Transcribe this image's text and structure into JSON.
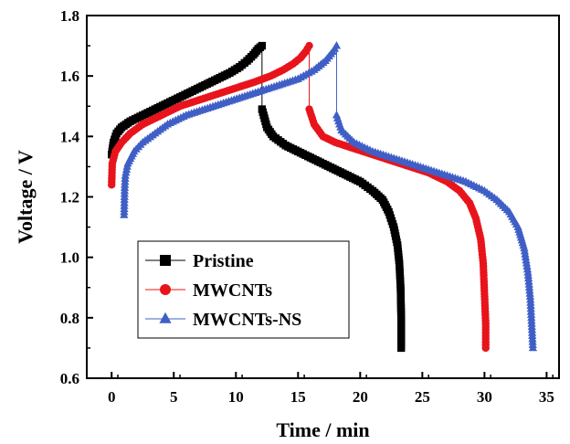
{
  "chart_data": {
    "type": "line",
    "xlabel": "Time / min",
    "ylabel": "Voltage / V",
    "xlim": [
      -2,
      36
    ],
    "ylim": [
      0.6,
      1.8
    ],
    "xticks": [
      "0",
      "5",
      "10",
      "15",
      "20",
      "25",
      "30",
      "35"
    ],
    "yticks": [
      "0.6",
      "0.8",
      "1.0",
      "1.2",
      "1.4",
      "1.6",
      "1.8"
    ],
    "legend_position": "bottom-left",
    "series": [
      {
        "name": "Pristine",
        "color": "#000000",
        "marker": "square",
        "charge": [
          [
            0.0,
            1.34
          ],
          [
            0.15,
            1.38
          ],
          [
            0.4,
            1.41
          ],
          [
            0.8,
            1.43
          ],
          [
            1.5,
            1.45
          ],
          [
            2.5,
            1.47
          ],
          [
            3.5,
            1.49
          ],
          [
            4.5,
            1.51
          ],
          [
            5.5,
            1.53
          ],
          [
            6.5,
            1.55
          ],
          [
            7.5,
            1.57
          ],
          [
            8.5,
            1.59
          ],
          [
            9.5,
            1.61
          ],
          [
            10.3,
            1.63
          ],
          [
            10.9,
            1.65
          ],
          [
            11.4,
            1.67
          ],
          [
            11.8,
            1.69
          ],
          [
            12.1,
            1.7
          ]
        ],
        "discharge": [
          [
            12.1,
            1.49
          ],
          [
            12.5,
            1.43
          ],
          [
            13.0,
            1.4
          ],
          [
            14.0,
            1.37
          ],
          [
            15.0,
            1.35
          ],
          [
            16.0,
            1.33
          ],
          [
            17.0,
            1.31
          ],
          [
            18.0,
            1.29
          ],
          [
            19.0,
            1.27
          ],
          [
            20.0,
            1.25
          ],
          [
            21.0,
            1.22
          ],
          [
            21.8,
            1.19
          ],
          [
            22.3,
            1.15
          ],
          [
            22.7,
            1.1
          ],
          [
            23.0,
            1.04
          ],
          [
            23.15,
            0.98
          ],
          [
            23.25,
            0.9
          ],
          [
            23.3,
            0.8
          ],
          [
            23.3,
            0.7
          ]
        ]
      },
      {
        "name": "MWCNTs",
        "color": "#e8141b",
        "marker": "circle",
        "charge": [
          [
            0.0,
            1.24
          ],
          [
            0.05,
            1.31
          ],
          [
            0.3,
            1.35
          ],
          [
            0.8,
            1.38
          ],
          [
            1.5,
            1.41
          ],
          [
            2.5,
            1.44
          ],
          [
            4.0,
            1.47
          ],
          [
            5.5,
            1.5
          ],
          [
            7.0,
            1.52
          ],
          [
            8.5,
            1.54
          ],
          [
            10.0,
            1.56
          ],
          [
            11.5,
            1.58
          ],
          [
            12.8,
            1.6
          ],
          [
            13.8,
            1.62
          ],
          [
            14.6,
            1.64
          ],
          [
            15.2,
            1.66
          ],
          [
            15.6,
            1.68
          ],
          [
            15.9,
            1.7
          ]
        ],
        "discharge": [
          [
            15.9,
            1.49
          ],
          [
            16.3,
            1.44
          ],
          [
            17.0,
            1.4
          ],
          [
            18.0,
            1.38
          ],
          [
            19.5,
            1.36
          ],
          [
            21.0,
            1.34
          ],
          [
            22.5,
            1.32
          ],
          [
            24.0,
            1.3
          ],
          [
            25.5,
            1.28
          ],
          [
            27.0,
            1.25
          ],
          [
            28.0,
            1.22
          ],
          [
            28.8,
            1.18
          ],
          [
            29.3,
            1.13
          ],
          [
            29.7,
            1.06
          ],
          [
            29.9,
            0.98
          ],
          [
            30.0,
            0.88
          ],
          [
            30.1,
            0.78
          ],
          [
            30.1,
            0.7
          ]
        ]
      },
      {
        "name": "MWCNTs-NS",
        "color": "#3f5fc6",
        "marker": "triangle",
        "charge": [
          [
            1.0,
            1.14
          ],
          [
            1.05,
            1.23
          ],
          [
            1.1,
            1.27
          ],
          [
            1.3,
            1.31
          ],
          [
            1.8,
            1.35
          ],
          [
            2.5,
            1.38
          ],
          [
            3.5,
            1.41
          ],
          [
            4.5,
            1.44
          ],
          [
            6.0,
            1.47
          ],
          [
            7.5,
            1.49
          ],
          [
            9.0,
            1.51
          ],
          [
            10.5,
            1.53
          ],
          [
            12.0,
            1.55
          ],
          [
            13.5,
            1.57
          ],
          [
            15.0,
            1.59
          ],
          [
            16.3,
            1.62
          ],
          [
            17.2,
            1.65
          ],
          [
            17.8,
            1.68
          ],
          [
            18.1,
            1.7
          ]
        ],
        "discharge": [
          [
            18.1,
            1.47
          ],
          [
            18.5,
            1.42
          ],
          [
            19.5,
            1.38
          ],
          [
            21.0,
            1.35
          ],
          [
            22.5,
            1.33
          ],
          [
            24.0,
            1.31
          ],
          [
            25.5,
            1.29
          ],
          [
            27.0,
            1.27
          ],
          [
            28.5,
            1.25
          ],
          [
            30.0,
            1.22
          ],
          [
            31.0,
            1.19
          ],
          [
            32.0,
            1.15
          ],
          [
            32.7,
            1.1
          ],
          [
            33.2,
            1.03
          ],
          [
            33.5,
            0.95
          ],
          [
            33.7,
            0.86
          ],
          [
            33.8,
            0.78
          ],
          [
            33.9,
            0.7
          ]
        ]
      }
    ]
  }
}
